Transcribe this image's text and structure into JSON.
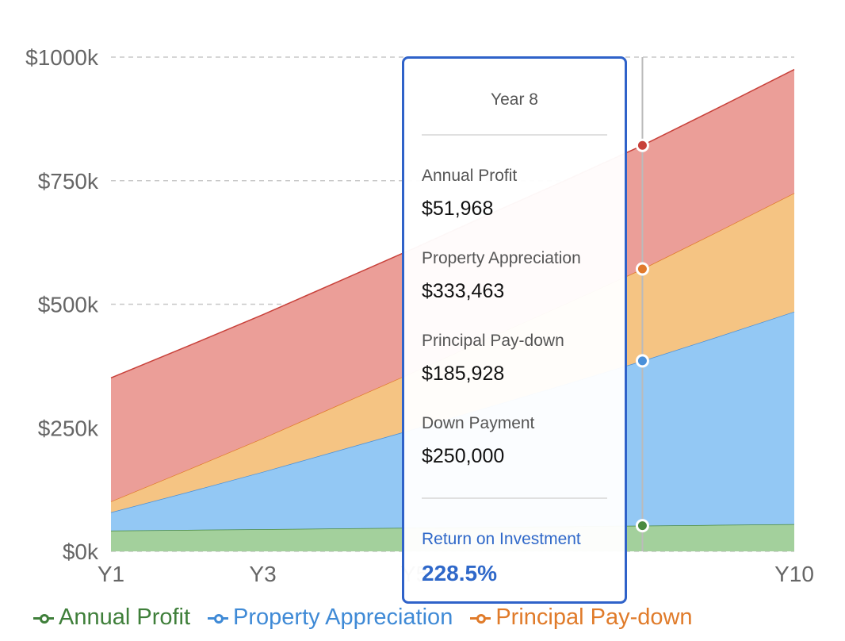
{
  "chart_data": {
    "type": "area",
    "stacked": true,
    "x": [
      "Y1",
      "Y2",
      "Y3",
      "Y4",
      "Y5",
      "Y6",
      "Y7",
      "Y8",
      "Y9",
      "Y10"
    ],
    "x_tick_labels": [
      "Y1",
      "Y3",
      "Y5",
      "Y10"
    ],
    "y_tick_labels": [
      "$0k",
      "$250k",
      "$500k",
      "$750k",
      "$1000k"
    ],
    "ylim": [
      0,
      1000000
    ],
    "grid": "horizontal dashed",
    "legend": "bottom",
    "series": [
      {
        "name": "Annual Profit",
        "color": "#4a8a40",
        "fill": "#a3d09c",
        "values": [
          42000,
          43400,
          44800,
          46300,
          47700,
          49200,
          50600,
          51968,
          53500,
          55000
        ]
      },
      {
        "name": "Property Appreciation",
        "color": "#4a90d9",
        "fill": "#93c8f4",
        "values": [
          37000,
          76000,
          116000,
          158000,
          200000,
          244000,
          288000,
          333463,
          381000,
          430000
        ]
      },
      {
        "name": "Principal Pay-down",
        "color": "#e07a2c",
        "fill": "#f5c483",
        "values": [
          22000,
          45000,
          68000,
          92000,
          116000,
          140000,
          163000,
          185928,
          213000,
          240000
        ]
      },
      {
        "name": "Down Payment",
        "color": "#c8413a",
        "fill": "#eb9e98",
        "values": [
          250000,
          250000,
          250000,
          250000,
          250000,
          250000,
          250000,
          250000,
          250000,
          250000
        ]
      }
    ],
    "hover_index": 7
  },
  "tooltip": {
    "title": "Year 8",
    "items": [
      {
        "label": "Annual Profit",
        "value": "$51,968"
      },
      {
        "label": "Property Appreciation",
        "value": "$333,463"
      },
      {
        "label": "Principal Pay-down",
        "value": "$185,928"
      },
      {
        "label": "Down Payment",
        "value": "$250,000"
      }
    ],
    "roi_label": "Return on Investment",
    "roi_value": "228.5%"
  },
  "legend": [
    {
      "label": "Annual Profit",
      "color": "#3f7f3a"
    },
    {
      "label": "Property Appreciation",
      "color": "#3f8ad6"
    },
    {
      "label": "Principal Pay-down",
      "color": "#e07b2a"
    }
  ]
}
